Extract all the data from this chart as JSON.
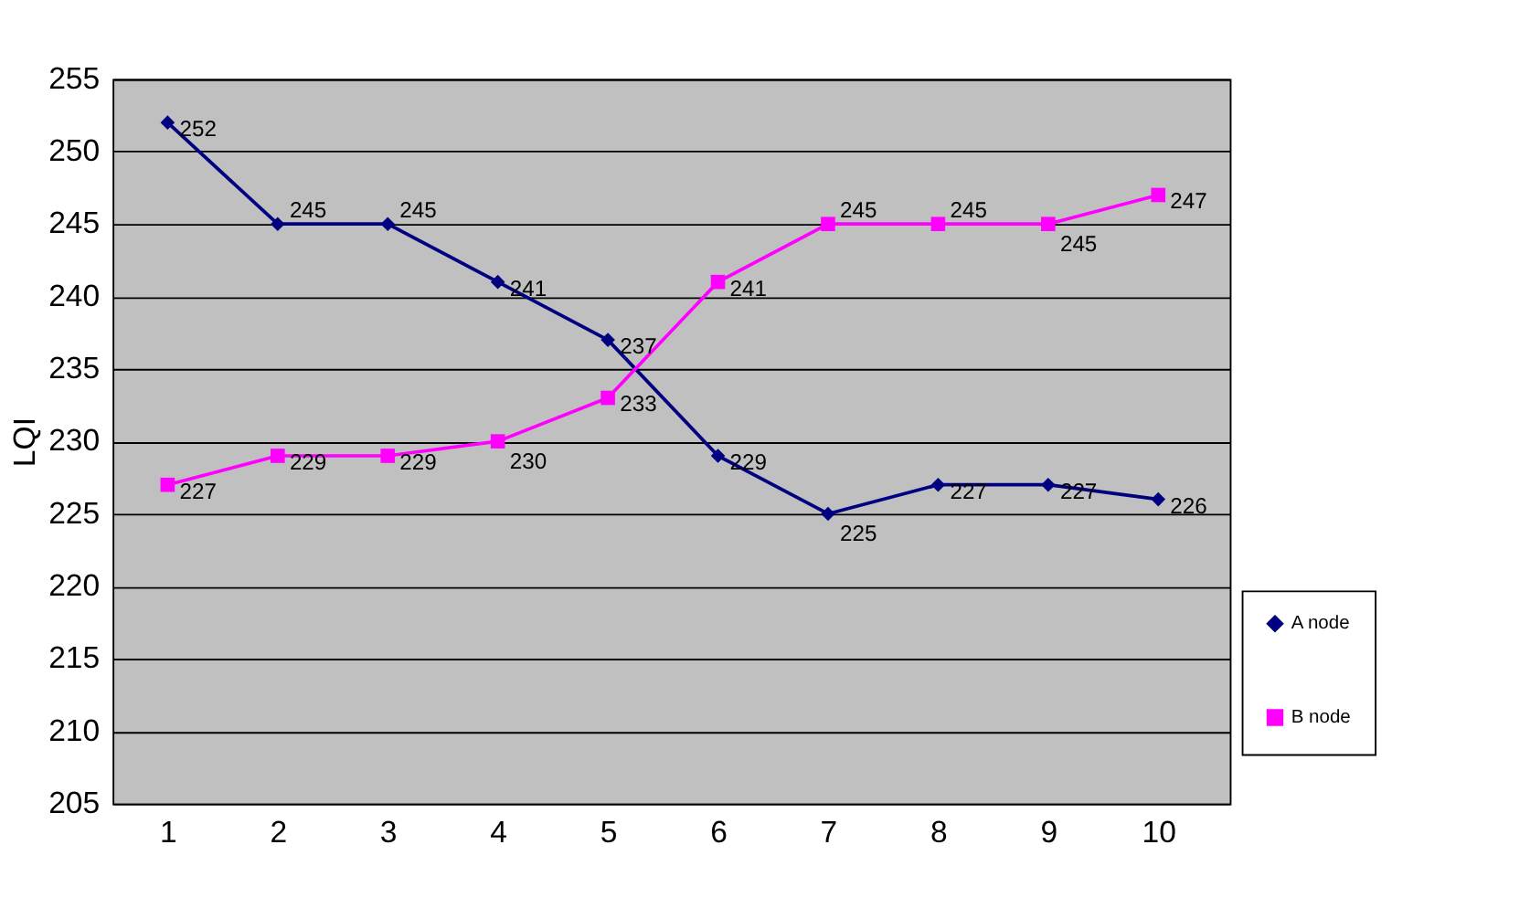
{
  "chart_data": {
    "type": "line",
    "ylabel": "LQI",
    "categories": [
      "1",
      "2",
      "3",
      "4",
      "5",
      "6",
      "7",
      "8",
      "9",
      "10"
    ],
    "series": [
      {
        "name": "A node",
        "color": "#000080",
        "marker": "diamond",
        "values": [
          252,
          245,
          245,
          241,
          237,
          229,
          225,
          227,
          227,
          226
        ]
      },
      {
        "name": "B node",
        "color": "#ff00ff",
        "marker": "square",
        "values": [
          227,
          229,
          229,
          230,
          233,
          241,
          245,
          245,
          245,
          247
        ]
      }
    ],
    "ylim": [
      205,
      255
    ],
    "yticks": [
      205,
      210,
      215,
      220,
      225,
      230,
      235,
      240,
      245,
      250,
      255
    ],
    "grid": "y",
    "legend": "right",
    "data_labels": true,
    "line_style": "solid"
  }
}
